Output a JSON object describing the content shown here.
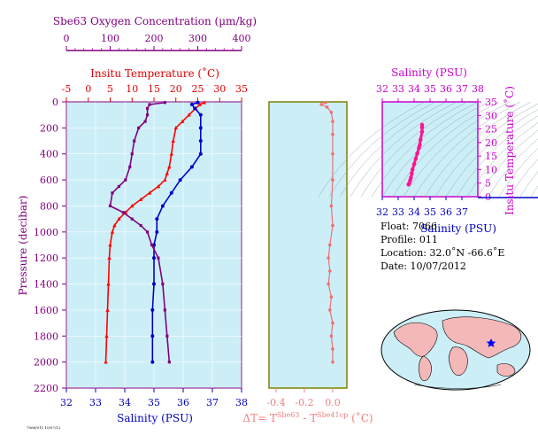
{
  "oxygen_axis": {
    "title": "Sbe63 Oxygen Concentration (µm/kg)",
    "ticks": [
      "0",
      "100",
      "200",
      "300",
      "400"
    ],
    "range": [
      0,
      400
    ],
    "color": "#800080"
  },
  "temp_axis": {
    "title": "Insitu Temperature (˚C)",
    "ticks": [
      "-5",
      "0",
      "5",
      "10",
      "15",
      "20",
      "25",
      "30",
      "35"
    ],
    "range": [
      -5,
      35
    ],
    "color": "#e00000"
  },
  "sal_axis": {
    "title": "Salinity (PSU)",
    "ticks": [
      "32",
      "33",
      "34",
      "35",
      "36",
      "37",
      "38"
    ],
    "range": [
      32,
      38
    ],
    "color": "#0000c0"
  },
  "pressure_axis": {
    "title": "Pressure (decibar)",
    "ticks": [
      "0",
      "200",
      "400",
      "600",
      "800",
      "1000",
      "1200",
      "1400",
      "1600",
      "1800",
      "2000",
      "2200"
    ],
    "range": [
      0,
      2200
    ],
    "color": "#800080"
  },
  "dt_axis": {
    "title_parts": [
      "ΔT= T",
      "Sbe63",
      " - T",
      "Sbe41cp",
      " (˚C)"
    ],
    "ticks": [
      "-0.4",
      "-0.2",
      "0.0"
    ],
    "range": [
      -0.45,
      0.1
    ],
    "color": "#f08080"
  },
  "ts_axis": {
    "title_top": "Salinity (PSU)",
    "title_bottom": "Salinity (PSU)",
    "title_right": "Insitu Temperature (˚C)",
    "sal_ticks_top": [
      "32",
      "33",
      "34",
      "35",
      "36",
      "37",
      "38"
    ],
    "sal_ticks_bottom": [
      "32",
      "33",
      "34",
      "35",
      "36",
      "37"
    ],
    "temp_ticks": [
      "0",
      "5",
      "10",
      "15",
      "20",
      "25",
      "30",
      "35"
    ],
    "sal_range": [
      32,
      38
    ],
    "temp_range": [
      0,
      35
    ]
  },
  "info": {
    "float": "Float:  7066",
    "profile": "Profile:  011",
    "location": "Location:  32.0˚N  -66.6˚E",
    "date": "Date:  10/07/2012"
  },
  "footer_stamp": "7066/011 10/07/12",
  "colors": {
    "panel_bg": "#cceef7",
    "temperature": "#ff0000",
    "salinity": "#0000cc",
    "oxygen": "#800080",
    "dt": "#f07070",
    "ts": "#ff1493",
    "frame": "#800080"
  },
  "chart_data": [
    {
      "type": "line",
      "title": "",
      "ylabel": "Pressure (decibar)",
      "series": [
        {
          "name": "Insitu Temperature",
          "axis": "temperature",
          "values": [
            [
              26.5,
              5
            ],
            [
              25.5,
              20
            ],
            [
              24.5,
              50
            ],
            [
              23.0,
              100
            ],
            [
              21.5,
              150
            ],
            [
              20.0,
              200
            ],
            [
              19.4,
              300
            ],
            [
              19.0,
              400
            ],
            [
              18.5,
              500
            ],
            [
              18.0,
              550
            ],
            [
              17.5,
              600
            ],
            [
              16.0,
              650
            ],
            [
              14.0,
              700
            ],
            [
              12.0,
              750
            ],
            [
              10.0,
              800
            ],
            [
              8.5,
              850
            ],
            [
              7.0,
              900
            ],
            [
              6.0,
              950
            ],
            [
              5.5,
              1000
            ],
            [
              5.0,
              1100
            ],
            [
              4.8,
              1200
            ],
            [
              4.6,
              1400
            ],
            [
              4.4,
              1600
            ],
            [
              4.2,
              1800
            ],
            [
              4.0,
              2000
            ]
          ]
        },
        {
          "name": "Salinity",
          "axis": "salinity",
          "values": [
            [
              36.5,
              5
            ],
            [
              36.3,
              20
            ],
            [
              36.4,
              50
            ],
            [
              36.6,
              100
            ],
            [
              36.6,
              200
            ],
            [
              36.6,
              300
            ],
            [
              36.6,
              400
            ],
            [
              36.3,
              500
            ],
            [
              35.9,
              600
            ],
            [
              35.6,
              700
            ],
            [
              35.3,
              800
            ],
            [
              35.1,
              900
            ],
            [
              35.1,
              1000
            ],
            [
              35.0,
              1100
            ],
            [
              35.0,
              1200
            ],
            [
              35.0,
              1400
            ],
            [
              34.95,
              1600
            ],
            [
              34.95,
              1800
            ],
            [
              34.95,
              2000
            ]
          ]
        },
        {
          "name": "Oxygen Concentration",
          "axis": "oxygen",
          "values": [
            [
              225,
              5
            ],
            [
              190,
              20
            ],
            [
              185,
              50
            ],
            [
              185,
              100
            ],
            [
              180,
              150
            ],
            [
              165,
              200
            ],
            [
              155,
              300
            ],
            [
              150,
              400
            ],
            [
              145,
              500
            ],
            [
              135,
              600
            ],
            [
              120,
              650
            ],
            [
              105,
              700
            ],
            [
              100,
              800
            ],
            [
              130,
              850
            ],
            [
              150,
              900
            ],
            [
              170,
              950
            ],
            [
              185,
              1000
            ],
            [
              195,
              1100
            ],
            [
              210,
              1200
            ],
            [
              220,
              1400
            ],
            [
              225,
              1600
            ],
            [
              230,
              1800
            ],
            [
              235,
              2000
            ]
          ]
        }
      ]
    },
    {
      "type": "line",
      "xlabel": "ΔT= TSbe63 - TSbe41cp (˚C)",
      "x_range": [
        -0.45,
        0.1
      ],
      "series": [
        {
          "name": "Temperature difference",
          "values": [
            [
              -0.05,
              5
            ],
            [
              -0.08,
              20
            ],
            [
              -0.04,
              40
            ],
            [
              -0.01,
              80
            ],
            [
              0.0,
              150
            ],
            [
              0.0,
              250
            ],
            [
              0.0,
              400
            ],
            [
              0.0,
              600
            ],
            [
              -0.01,
              800
            ],
            [
              0.0,
              950
            ],
            [
              -0.02,
              1100
            ],
            [
              -0.03,
              1200
            ],
            [
              -0.02,
              1300
            ],
            [
              -0.03,
              1400
            ],
            [
              -0.01,
              1500
            ],
            [
              -0.02,
              1600
            ],
            [
              0.0,
              1700
            ],
            [
              -0.01,
              1800
            ],
            [
              0.0,
              1900
            ],
            [
              0.0,
              2000
            ]
          ]
        }
      ]
    },
    {
      "type": "scatter",
      "xlabel": "Salinity (PSU)",
      "ylabel": "Insitu Temperature (˚C)",
      "x_range": [
        32,
        38
      ],
      "y_range": [
        0,
        35
      ],
      "series": [
        {
          "name": "T-S",
          "values": [
            [
              34.5,
              26.5
            ],
            [
              34.5,
              25.5
            ],
            [
              34.5,
              24
            ],
            [
              34.4,
              21
            ],
            [
              34.35,
              19
            ],
            [
              34.3,
              18
            ],
            [
              34.2,
              16
            ],
            [
              34.1,
              14
            ],
            [
              34.0,
              12
            ],
            [
              33.9,
              10
            ],
            [
              33.85,
              8.5
            ],
            [
              33.8,
              7
            ],
            [
              33.75,
              6
            ],
            [
              33.7,
              5
            ],
            [
              33.65,
              4.5
            ]
          ]
        }
      ]
    }
  ]
}
